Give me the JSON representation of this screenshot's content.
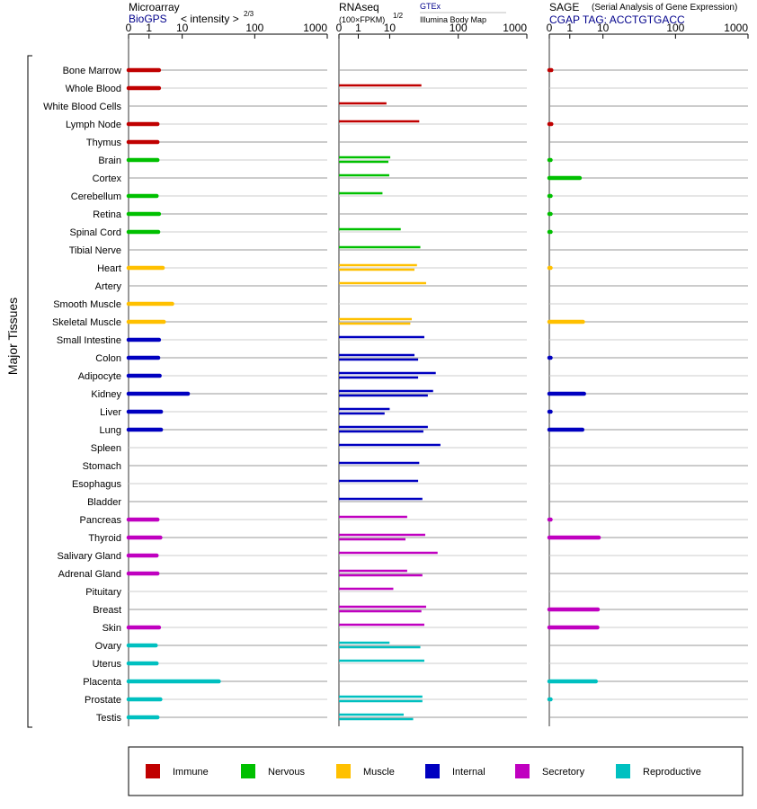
{
  "headers": {
    "microarray": {
      "title": "Microarray",
      "source": "BioGPS",
      "unit": "< intensity >",
      "exponent": "2/3"
    },
    "rnaseq": {
      "title": "RNAseq",
      "unit": "(100×FPKM)",
      "exponent": "1/2",
      "source1": "GTEx",
      "source2": "Illumina Body Map"
    },
    "sage": {
      "title": "SAGE",
      "subtitle": "(Serial Analysis of Gene Expression)",
      "source": "CGAP TAG: ACCTGTGACC"
    }
  },
  "y_group_label": "Major Tissues",
  "colors": {
    "Immune": "#c00000",
    "Nervous": "#00c000",
    "Muscle": "#ffc000",
    "Internal": "#0000c0",
    "Secretory": "#c000c0",
    "Reproductive": "#00c0c0"
  },
  "chart_data": {
    "type": "bar",
    "x_ticks": [
      "0",
      "1",
      "10",
      "100",
      "1000"
    ],
    "xlim": [
      0,
      1000
    ],
    "legend": [
      "Immune",
      "Nervous",
      "Muscle",
      "Internal",
      "Secretory",
      "Reproductive"
    ],
    "tissues": [
      {
        "name": "Bone Marrow",
        "system": "Immune",
        "microarray": 2.0,
        "rnaseq": [],
        "sage": 0.1
      },
      {
        "name": "Whole Blood",
        "system": "Immune",
        "microarray": 2.0,
        "rnaseq": [
          29
        ],
        "sage": null
      },
      {
        "name": "White Blood Cells",
        "system": "Immune",
        "microarray": null,
        "rnaseq": [
          7.9
        ],
        "sage": null
      },
      {
        "name": "Lymph Node",
        "system": "Immune",
        "microarray": 1.8,
        "rnaseq": [
          27
        ],
        "sage": 0.1
      },
      {
        "name": "Thymus",
        "system": "Immune",
        "microarray": 1.8,
        "rnaseq": [],
        "sage": null
      },
      {
        "name": "Brain",
        "system": "Nervous",
        "microarray": 1.8,
        "rnaseq": [
          10.2,
          9.1
        ],
        "sage": 0.05
      },
      {
        "name": "Cortex",
        "system": "Nervous",
        "microarray": null,
        "rnaseq": [
          9.7
        ],
        "sage": 2.0
      },
      {
        "name": "Cerebellum",
        "system": "Nervous",
        "microarray": 1.7,
        "rnaseq": [
          5.9
        ],
        "sage": 0.05
      },
      {
        "name": "Retina",
        "system": "Nervous",
        "microarray": 2.0,
        "rnaseq": [],
        "sage": 0.05
      },
      {
        "name": "Spinal Cord",
        "system": "Nervous",
        "microarray": 1.9,
        "rnaseq": [
          14.5
        ],
        "sage": 0.05
      },
      {
        "name": "Tibial Nerve",
        "system": "Nervous",
        "microarray": null,
        "rnaseq": [
          28
        ],
        "sage": null
      },
      {
        "name": "Heart",
        "system": "Muscle",
        "microarray": 2.6,
        "rnaseq": [
          25,
          23
        ],
        "sage": 0.03
      },
      {
        "name": "Artery",
        "system": "Muscle",
        "microarray": null,
        "rnaseq": [
          34
        ],
        "sage": null
      },
      {
        "name": "Smooth Muscle",
        "system": "Muscle",
        "microarray": 5.0,
        "rnaseq": [],
        "sage": null
      },
      {
        "name": "Skeletal Muscle",
        "system": "Muscle",
        "microarray": 2.8,
        "rnaseq": [
          21,
          20
        ],
        "sage": 2.5
      },
      {
        "name": "Small Intestine",
        "system": "Internal",
        "microarray": 2.0,
        "rnaseq": [
          32
        ],
        "sage": null
      },
      {
        "name": "Colon",
        "system": "Internal",
        "microarray": 1.9,
        "rnaseq": [
          23,
          26
        ],
        "sage": 0.05
      },
      {
        "name": "Adipocyte",
        "system": "Internal",
        "microarray": 2.1,
        "rnaseq": [
          47,
          26
        ],
        "sage": null
      },
      {
        "name": "Kidney",
        "system": "Internal",
        "microarray": 12.0,
        "rnaseq": [
          43,
          36
        ],
        "sage": 2.7
      },
      {
        "name": "Liver",
        "system": "Internal",
        "microarray": 2.3,
        "rnaseq": [
          10,
          6.9
        ],
        "sage": 0.05
      },
      {
        "name": "Lung",
        "system": "Internal",
        "microarray": 2.3,
        "rnaseq": [
          36,
          31
        ],
        "sage": 2.4
      },
      {
        "name": "Spleen",
        "system": "Internal",
        "microarray": null,
        "rnaseq": [
          55
        ],
        "sage": null
      },
      {
        "name": "Stomach",
        "system": "Internal",
        "microarray": null,
        "rnaseq": [
          27
        ],
        "sage": null
      },
      {
        "name": "Esophagus",
        "system": "Internal",
        "microarray": null,
        "rnaseq": [
          26
        ],
        "sage": null
      },
      {
        "name": "Bladder",
        "system": "Internal",
        "microarray": null,
        "rnaseq": [
          30
        ],
        "sage": null
      },
      {
        "name": "Pancreas",
        "system": "Secretory",
        "microarray": 1.8,
        "rnaseq": [
          18
        ],
        "sage": 0.05
      },
      {
        "name": "Thyroid",
        "system": "Secretory",
        "microarray": 2.2,
        "rnaseq": [
          33,
          17
        ],
        "sage": 7.5
      },
      {
        "name": "Salivary Gland",
        "system": "Secretory",
        "microarray": 1.7,
        "rnaseq": [
          50
        ],
        "sage": null
      },
      {
        "name": "Adrenal Gland",
        "system": "Secretory",
        "microarray": 1.8,
        "rnaseq": [
          18,
          30
        ],
        "sage": null
      },
      {
        "name": "Pituitary",
        "system": "Secretory",
        "microarray": null,
        "rnaseq": [
          11.3
        ],
        "sage": null
      },
      {
        "name": "Breast",
        "system": "Secretory",
        "microarray": null,
        "rnaseq": [
          34,
          29
        ],
        "sage": 7.0
      },
      {
        "name": "Skin",
        "system": "Secretory",
        "microarray": 2.0,
        "rnaseq": [
          32
        ],
        "sage": 6.8
      },
      {
        "name": "Ovary",
        "system": "Reproductive",
        "microarray": 1.6,
        "rnaseq": [
          9.9,
          28
        ],
        "sage": null
      },
      {
        "name": "Uterus",
        "system": "Reproductive",
        "microarray": 1.7,
        "rnaseq": [
          32
        ],
        "sage": null
      },
      {
        "name": "Placenta",
        "system": "Reproductive",
        "microarray": 32.0,
        "rnaseq": [],
        "sage": 6.1
      },
      {
        "name": "Prostate",
        "system": "Reproductive",
        "microarray": 2.2,
        "rnaseq": [
          30,
          30
        ],
        "sage": 0.03
      },
      {
        "name": "Testis",
        "system": "Reproductive",
        "microarray": 1.8,
        "rnaseq": [
          16,
          22
        ],
        "sage": null
      }
    ]
  }
}
